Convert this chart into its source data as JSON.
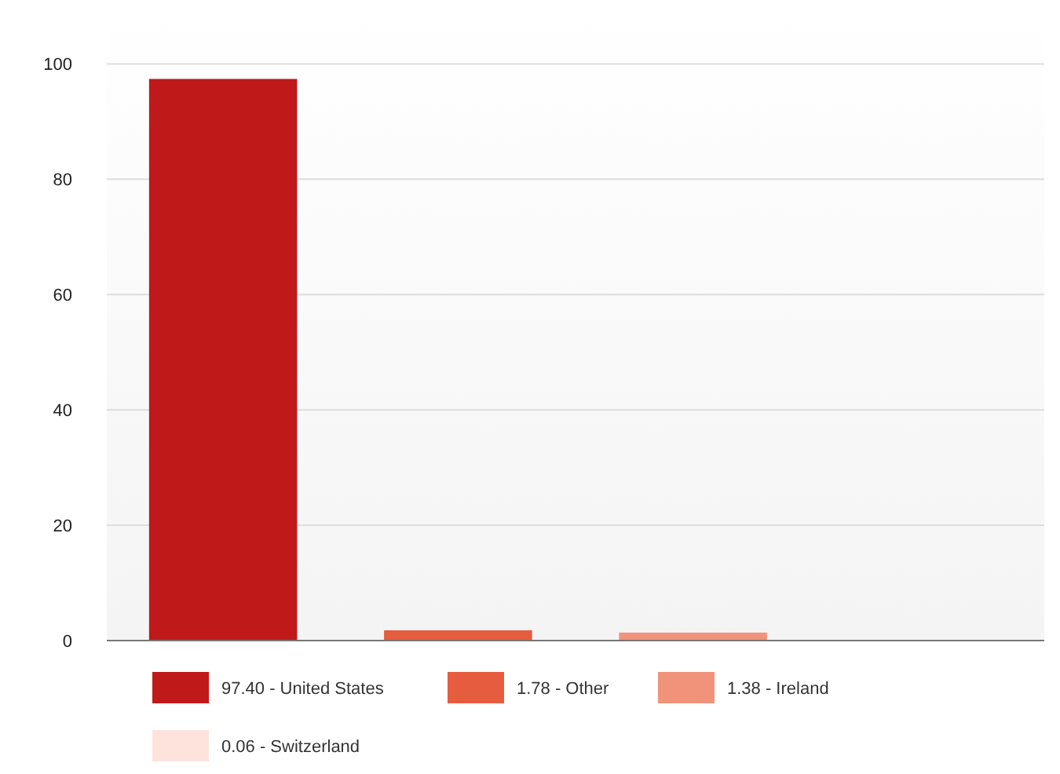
{
  "chart_data": {
    "type": "bar",
    "categories": [
      null,
      null,
      null,
      null
    ],
    "series": [
      {
        "name": "97.40 - United States",
        "color": "#c0191a",
        "values": [
          97.4,
          null,
          null,
          null
        ]
      },
      {
        "name": "1.78 - Other",
        "color": "#e65c3f",
        "values": [
          null,
          1.78,
          null,
          null
        ]
      },
      {
        "name": "1.38 - Ireland",
        "color": "#f0937a",
        "values": [
          null,
          null,
          1.38,
          null
        ]
      },
      {
        "name": "0.06 - Switzerland",
        "color": "#fde3dc",
        "values": [
          null,
          null,
          null,
          0.06
        ]
      }
    ],
    "ylim": [
      0,
      110
    ],
    "yticks": [
      0,
      20,
      40,
      60,
      80,
      100
    ],
    "grid": "y",
    "legend": "bottom"
  }
}
